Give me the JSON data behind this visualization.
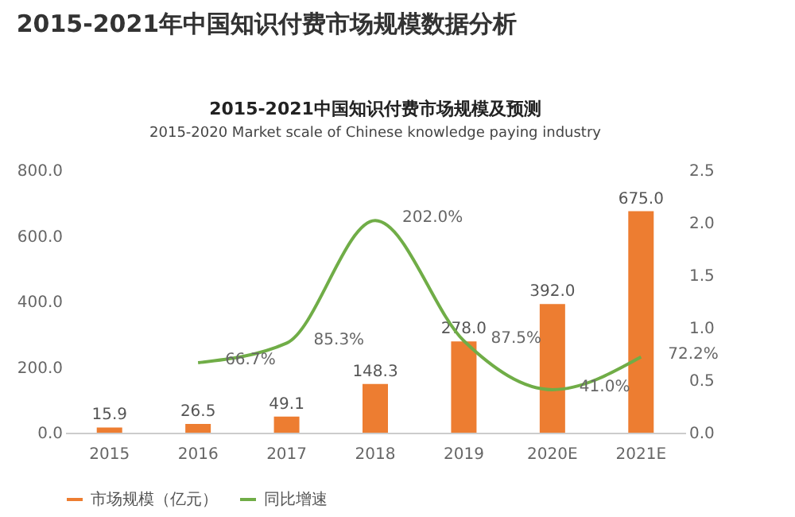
{
  "chart_data": {
    "type": "bar",
    "title": "2015-2021年中国知识付费市场规模数据分析",
    "subtitle": "2015-2021中国知识付费市场规模及预测",
    "annotations": [
      "2015-2020 Market scale of Chinese knowledge paying industry"
    ],
    "categories": [
      "2015",
      "2016",
      "2017",
      "2018",
      "2019",
      "2020E",
      "2021E"
    ],
    "series": [
      {
        "name": "市场规模（亿元）",
        "color": "#ed7d31",
        "values": [
          15.9,
          26.5,
          49.1,
          148.3,
          278.0,
          392.0,
          675.0
        ],
        "value_labels": [
          "15.9",
          "26.5",
          "49.1",
          "148.3",
          "278.0",
          "392.0",
          "675.0"
        ]
      },
      {
        "name": "同比增速",
        "type": "line",
        "axis": "y2",
        "color": "#70ad47",
        "values": [
          null,
          0.667,
          0.853,
          2.02,
          0.875,
          0.41,
          0.722
        ],
        "value_labels": [
          null,
          "66.7%",
          "85.3%",
          "202.0%",
          "87.5%",
          "41.0%",
          "72.2%"
        ]
      }
    ],
    "ylim": [
      0,
      800
    ],
    "yticks": [
      {
        "value": 0,
        "label": "0.0"
      },
      {
        "value": 200,
        "label": "200.0"
      },
      {
        "value": 400,
        "label": "400.0"
      },
      {
        "value": 600,
        "label": "600.0"
      },
      {
        "value": 800,
        "label": "800.0"
      }
    ],
    "y2lim": [
      0,
      2.5
    ],
    "y2ticks": [
      {
        "value": 0,
        "label": "0.0"
      },
      {
        "value": 0.5,
        "label": "0.5"
      },
      {
        "value": 1,
        "label": "1.0"
      },
      {
        "value": 1.5,
        "label": "1.5"
      },
      {
        "value": 2,
        "label": "2.0"
      },
      {
        "value": 2.5,
        "label": "2.5"
      }
    ],
    "data_labels": true,
    "grid": false,
    "legend": "bottom"
  }
}
